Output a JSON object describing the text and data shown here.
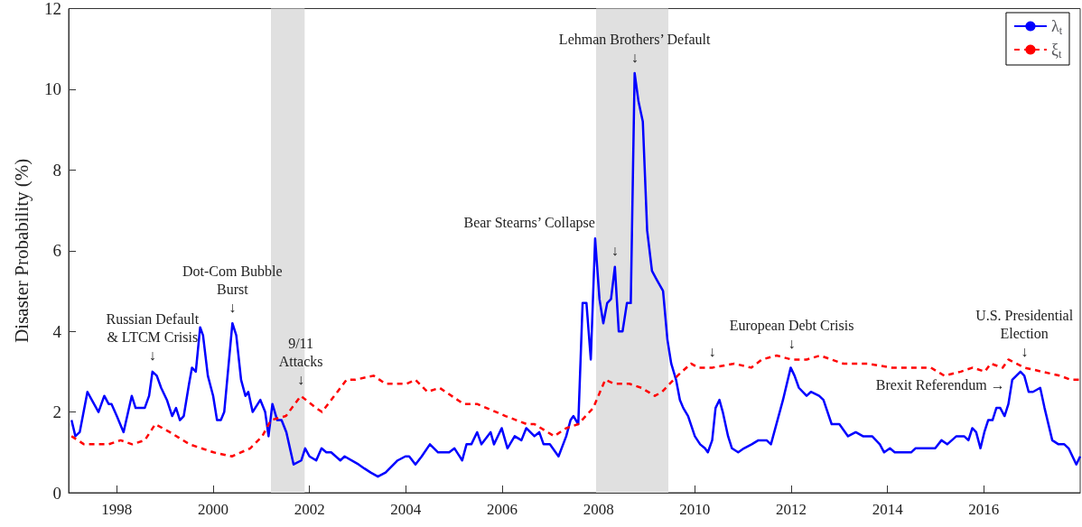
{
  "chart_data": {
    "type": "line",
    "ylabel": "Disaster Probability (%)",
    "xlim": [
      1997,
      2018
    ],
    "xticks": [
      1998,
      2000,
      2002,
      2004,
      2006,
      2008,
      2010,
      2012,
      2014,
      2016
    ],
    "ylim": [
      0,
      12
    ],
    "yticks": [
      0,
      2,
      4,
      6,
      8,
      10,
      12
    ],
    "grid": false,
    "legend": "top right",
    "marker": "none",
    "series": [
      {
        "name": "λ$_{t}$",
        "color": "#0000ff",
        "line_style": "solid",
        "x": [
          1997.06,
          1997.14,
          1997.23,
          1997.39,
          1997.48,
          1997.62,
          1997.74,
          1997.83,
          1997.89,
          1998.0,
          1998.14,
          1998.31,
          1998.39,
          1998.58,
          1998.67,
          1998.74,
          1998.83,
          1998.92,
          1999.04,
          1999.15,
          1999.23,
          1999.31,
          1999.39,
          1999.5,
          1999.56,
          1999.64,
          1999.73,
          1999.79,
          1999.89,
          2000.0,
          2000.08,
          2000.16,
          2000.23,
          2000.4,
          2000.48,
          2000.58,
          2000.67,
          2000.73,
          2000.82,
          2000.98,
          2001.08,
          2001.15,
          2001.23,
          2001.33,
          2001.42,
          2001.52,
          2001.67,
          2001.83,
          2001.91,
          2002.0,
          2002.14,
          2002.25,
          2002.35,
          2002.45,
          2002.64,
          2002.73,
          2003.02,
          2003.14,
          2003.27,
          2003.42,
          2003.58,
          2003.83,
          2003.99,
          2004.07,
          2004.2,
          2004.33,
          2004.5,
          2004.67,
          2004.8,
          2004.9,
          2005.01,
          2005.17,
          2005.26,
          2005.36,
          2005.48,
          2005.57,
          2005.76,
          2005.83,
          2005.99,
          2006.11,
          2006.26,
          2006.4,
          2006.5,
          2006.67,
          2006.77,
          2006.86,
          2006.99,
          2007.17,
          2007.33,
          2007.42,
          2007.48,
          2007.58,
          2007.67,
          2007.75,
          2007.84,
          2007.93,
          2008.02,
          2008.1,
          2008.18,
          2008.26,
          2008.34,
          2008.42,
          2008.5,
          2008.59,
          2008.67,
          2008.75,
          2008.83,
          2008.92,
          2009.01,
          2009.11,
          2009.2,
          2009.34,
          2009.43,
          2009.51,
          2009.61,
          2009.69,
          2009.76,
          2009.86,
          2010.0,
          2010.11,
          2010.21,
          2010.27,
          2010.36,
          2010.43,
          2010.51,
          2010.58,
          2010.69,
          2010.77,
          2010.9,
          2011.02,
          2011.18,
          2011.32,
          2011.49,
          2011.58,
          2011.83,
          2011.99,
          2012.07,
          2012.16,
          2012.32,
          2012.41,
          2012.58,
          2012.67,
          2012.84,
          2013.0,
          2013.18,
          2013.34,
          2013.49,
          2013.68,
          2013.84,
          2013.93,
          2014.05,
          2014.15,
          2014.33,
          2014.49,
          2014.58,
          2014.74,
          2014.99,
          2015.12,
          2015.24,
          2015.43,
          2015.59,
          2015.68,
          2015.76,
          2015.84,
          2015.93,
          2016.01,
          2016.09,
          2016.18,
          2016.26,
          2016.34,
          2016.43,
          2016.51,
          2016.59,
          2016.76,
          2016.84,
          2016.93,
          2017.02,
          2017.17,
          2017.26,
          2017.42,
          2017.55,
          2017.67,
          2017.76,
          2017.92,
          2018.0
        ],
        "values": [
          1.8,
          1.4,
          1.5,
          2.5,
          2.3,
          2.0,
          2.4,
          2.2,
          2.2,
          1.9,
          1.5,
          2.4,
          2.1,
          2.1,
          2.4,
          3.0,
          2.9,
          2.6,
          2.3,
          1.9,
          2.1,
          1.8,
          1.9,
          2.7,
          3.1,
          3.0,
          4.1,
          3.9,
          2.9,
          2.4,
          1.8,
          1.8,
          2.0,
          4.2,
          3.9,
          2.8,
          2.4,
          2.5,
          2.0,
          2.3,
          2.0,
          1.4,
          2.2,
          1.8,
          1.8,
          1.5,
          0.7,
          0.8,
          1.1,
          0.9,
          0.8,
          1.1,
          1.0,
          1.0,
          0.8,
          0.9,
          0.7,
          0.6,
          0.5,
          0.4,
          0.5,
          0.8,
          0.9,
          0.9,
          0.7,
          0.9,
          1.2,
          1.0,
          1.0,
          1.0,
          1.1,
          0.8,
          1.2,
          1.2,
          1.5,
          1.2,
          1.5,
          1.2,
          1.6,
          1.1,
          1.4,
          1.3,
          1.6,
          1.4,
          1.5,
          1.2,
          1.2,
          0.9,
          1.4,
          1.8,
          1.9,
          1.7,
          4.7,
          4.7,
          3.3,
          6.3,
          4.8,
          4.2,
          4.7,
          4.8,
          5.6,
          4.0,
          4.0,
          4.7,
          4.7,
          10.4,
          9.7,
          9.2,
          6.5,
          5.5,
          5.3,
          5.0,
          3.8,
          3.2,
          2.8,
          2.3,
          2.1,
          1.9,
          1.4,
          1.2,
          1.1,
          1.0,
          1.3,
          2.1,
          2.3,
          2.0,
          1.4,
          1.1,
          1.0,
          1.1,
          1.2,
          1.3,
          1.3,
          1.2,
          2.3,
          3.1,
          2.9,
          2.6,
          2.4,
          2.5,
          2.4,
          2.3,
          1.7,
          1.7,
          1.4,
          1.5,
          1.4,
          1.4,
          1.2,
          1.0,
          1.1,
          1.0,
          1.0,
          1.0,
          1.1,
          1.1,
          1.1,
          1.3,
          1.2,
          1.4,
          1.4,
          1.3,
          1.6,
          1.5,
          1.1,
          1.5,
          1.8,
          1.8,
          2.1,
          2.1,
          1.9,
          2.2,
          2.8,
          3.0,
          2.9,
          2.5,
          2.5,
          2.6,
          2.1,
          1.3,
          1.2,
          1.2,
          1.1,
          0.7,
          0.9
        ]
      },
      {
        "name": "ξ$_{t}$",
        "color": "#ff0000",
        "line_style": "dashed",
        "x": [
          1997.06,
          1997.32,
          1997.83,
          1998.08,
          1998.32,
          1998.58,
          1998.8,
          1999.1,
          1999.51,
          2000.01,
          2000.39,
          2000.77,
          2001.02,
          2001.2,
          2001.51,
          2001.82,
          2002.14,
          2002.26,
          2002.58,
          2002.77,
          2002.95,
          2003.33,
          2003.58,
          2004.02,
          2004.2,
          2004.45,
          2004.7,
          2005.2,
          2005.48,
          2006.07,
          2006.51,
          2006.67,
          2007.08,
          2007.33,
          2007.58,
          2007.89,
          2008.14,
          2008.33,
          2008.64,
          2008.89,
          2009.17,
          2009.32,
          2009.64,
          2009.92,
          2010.07,
          2010.36,
          2010.82,
          2011.17,
          2011.39,
          2011.7,
          2012.01,
          2012.32,
          2012.6,
          2013.08,
          2013.58,
          2014.09,
          2014.58,
          2014.9,
          2015.18,
          2015.52,
          2015.77,
          2016.02,
          2016.14,
          2016.39,
          2016.51,
          2016.84,
          2017.21,
          2017.58,
          2017.8,
          2018.0
        ],
        "values": [
          1.4,
          1.2,
          1.2,
          1.3,
          1.2,
          1.3,
          1.7,
          1.5,
          1.2,
          1.0,
          0.9,
          1.1,
          1.4,
          1.8,
          1.9,
          2.4,
          2.1,
          2.0,
          2.5,
          2.8,
          2.8,
          2.9,
          2.7,
          2.7,
          2.8,
          2.5,
          2.6,
          2.2,
          2.2,
          1.9,
          1.7,
          1.7,
          1.4,
          1.6,
          1.7,
          2.1,
          2.8,
          2.7,
          2.7,
          2.6,
          2.4,
          2.5,
          2.9,
          3.2,
          3.1,
          3.1,
          3.2,
          3.1,
          3.3,
          3.4,
          3.3,
          3.3,
          3.4,
          3.2,
          3.2,
          3.1,
          3.1,
          3.1,
          2.9,
          3.0,
          3.1,
          3.0,
          3.2,
          3.1,
          3.3,
          3.1,
          3.0,
          2.9,
          2.8,
          2.8
        ]
      }
    ],
    "bands": [
      {
        "axis": "x",
        "from": 2001.2,
        "to": 2001.9,
        "color": "#e0e0e0"
      },
      {
        "axis": "x",
        "from": 2007.95,
        "to": 2009.45,
        "color": "#e0e0e0"
      }
    ],
    "annotations": [
      {
        "text": "Russian Default\n& LTCM Crisis\n↓",
        "x": 1998.74,
        "y": 3.0
      },
      {
        "text": "Dot-Com Bubble\nBurst\n↓",
        "x": 2000.4,
        "y": 4.2
      },
      {
        "text": "9/11\nAttacks\n↓",
        "x": 2001.82,
        "y": 2.4
      },
      {
        "text": "Bear Stearns’ Collapse",
        "x": 2007.93,
        "y": 6.3
      },
      {
        "text": "↓",
        "x": 2008.34,
        "y": 5.6
      },
      {
        "text": "Lehman Brothers’ Default\n↓",
        "x": 2008.75,
        "y": 10.4
      },
      {
        "text": "European Debt Crisis\n↓",
        "x": 2012.01,
        "y": 3.3
      },
      {
        "text": "↓",
        "x": 2010.36,
        "y": 3.1
      },
      {
        "text": "U.S. Presidential\nElection\n↓",
        "x": 2016.84,
        "y": 3.1
      },
      {
        "text": "Brexit Referendum →",
        "x": 2016.59,
        "y": 2.8
      }
    ]
  }
}
